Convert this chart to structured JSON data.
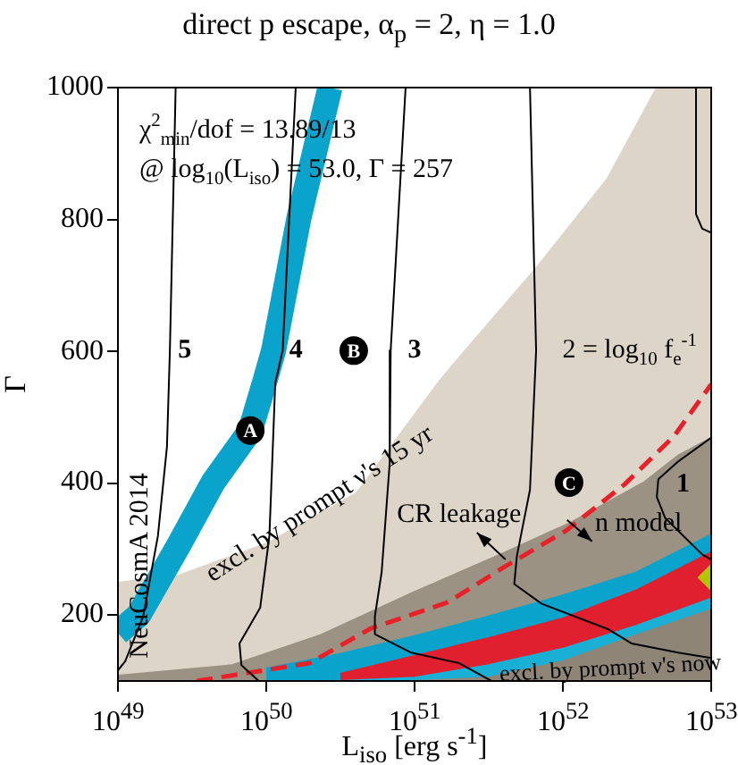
{
  "chart_data": {
    "type": "line",
    "title": "direct p escape, α$_{p}$ = 2, η = 1.0",
    "xlabel": "L$_{iso}$ [erg s$^{-1}$]",
    "ylabel": "Γ",
    "log": "x",
    "grid": false,
    "legend": false,
    "marker": "none",
    "xlim": [
      1e+49,
      1e+53
    ],
    "xticks": [
      {
        "value": 1e+49,
        "label": "10$^{49}$"
      },
      {
        "value": 1e+50,
        "label": "10$^{50}$"
      },
      {
        "value": 1e+51,
        "label": "10$^{51}$"
      },
      {
        "value": 1e+52,
        "label": "10$^{52}$"
      },
      {
        "value": 1e+53,
        "label": "10$^{53}$"
      }
    ],
    "ylim": [
      100,
      1000
    ],
    "yticks": [
      200,
      400,
      600,
      800,
      1000
    ],
    "series": [
      {
        "type": "area",
        "color": "#ddd5c8",
        "x": [
          1e+49,
          2.57e+49,
          1.02e+50,
          4.07e+50,
          1.45e+51,
          2.19e+51,
          6.6e+51,
          2e+52,
          4.3e+52,
          1e+53
        ],
        "values": [
          249,
          260,
          309,
          385,
          553,
          601,
          726,
          862,
          1000,
          1000
        ]
      },
      {
        "type": "area",
        "color": "#9b9283",
        "x": [
          1e+49,
          5.9e+49,
          2.34e+50,
          9.5e+50,
          3.8e+51,
          1.15e+52,
          3.5e+52,
          6e+52,
          1e+53
        ],
        "values": [
          108,
          124,
          170,
          233,
          292,
          341,
          401,
          442,
          469
        ]
      },
      {
        "type": "area",
        "color": "#0aa3cb",
        "x": [
          1e+50,
          3.16e+50,
          1e+51,
          3.16e+51,
          1e+52,
          3.16e+52,
          1e+53
        ],
        "values": [
          119,
          141,
          168,
          198,
          230,
          265,
          322
        ]
      },
      {
        "type": "area",
        "color": "#e0202f",
        "x": [
          3.16e+50,
          1e+51,
          3.16e+51,
          1e+52,
          3.16e+52,
          1e+53
        ],
        "values": [
          111,
          138,
          165,
          195,
          238,
          295
        ]
      },
      {
        "type": "area",
        "color": "#1ab0d6",
        "x": [
          3.16e+50,
          1e+51,
          3.16e+51,
          1e+52,
          3.16e+52,
          1e+53
        ],
        "values": [
          100,
          105,
          124,
          149,
          184,
          225
        ]
      },
      {
        "type": "area",
        "color": "#8e8577",
        "x": [
          1e+50,
          3.16e+50,
          1e+51,
          3.16e+51,
          1e+52,
          3.16e+52,
          1e+53
        ],
        "values": [
          100,
          100,
          100,
          105,
          130,
          170,
          208
        ]
      },
      {
        "color": "#0aa3cb",
        "x": [
          1e+49,
          1.38e+49,
          2.57e+49,
          4.37e+49,
          7.8e+49,
          9.8e+49,
          1.12e+50,
          1.66e+50,
          2.69e+50
        ],
        "values": [
          173,
          200,
          306,
          401,
          480,
          555,
          601,
          802,
          1000
        ]
      },
      {
        "color": "#e8202a",
        "line_style": "dashed",
        "x": [
          3.4e+49,
          1.95e+50,
          5e+50,
          1.66e+51,
          4.1e+51,
          1.05e+52,
          2.6e+52,
          5.6e+52,
          1e+53
        ],
        "values": [
          100,
          127,
          179,
          219,
          274,
          328,
          398,
          471,
          550
        ]
      },
      {
        "color": "#000000",
        "x": [
          2.45e+49,
          2.24e+49,
          2.14e+49,
          1.86e+49,
          1.48e+49,
          1.12e+49,
          1e+49
        ],
        "values": [
          1000,
          601,
          455,
          320,
          198,
          130,
          116
        ]
      },
      {
        "color": "#000000",
        "x": [
          1.58e+50,
          1.29e+50,
          1.15e+50,
          1.05e+50,
          9.1e+49,
          6.6e+49,
          6.8e+49,
          8.9e+49
        ],
        "values": [
          1000,
          601,
          552,
          320,
          211,
          157,
          124,
          100
        ]
      },
      {
        "color": "#000000",
        "x": [
          8.7e+50,
          6.9e+50,
          6.8e+50,
          6e+50,
          5.4e+50,
          5.4e+50,
          9.5e+50,
          2e+51,
          3.3e+51
        ],
        "values": [
          1000,
          601,
          431,
          265,
          198,
          171,
          143,
          127,
          100
        ]
      },
      {
        "color": "#000000",
        "x": [
          6e+51,
          6.6e+51,
          6e+51,
          4.9e+51,
          4.7e+51,
          7.2e+51,
          2e+52,
          2.9e+52,
          6e+52,
          1e+53
        ],
        "values": [
          1000,
          601,
          390,
          290,
          247,
          217,
          179,
          157,
          143,
          135
        ]
      },
      {
        "color": "#000000",
        "x": [
          7.9e+52,
          7.9e+52,
          8.7e+52,
          1e+53,
          null,
          1e+53,
          6e+52,
          4.4e+52,
          4.3e+52,
          4.9e+52,
          8.7e+52,
          1e+53
        ],
        "values": [
          1000,
          808,
          786,
          780,
          null,
          469,
          433,
          406,
          379,
          347,
          292,
          284
        ]
      },
      {
        "type": "scatter",
        "color": "#b5c400",
        "marker": "diamond",
        "x": [
          1e+53
        ],
        "values": [
          257
        ]
      }
    ],
    "annotations": [
      "χ$^{2}$$_{min}$/dof = 13.89/13",
      "@ log$_{10}$(L$_{iso}$) = 53.0, Γ = 257",
      "5",
      "4",
      {
        "text": "B",
        "x": 3.89e+50,
        "y": 601
      },
      "3",
      "2 = log$_{10}$ f$_{e}$$^{-1}$",
      {
        "text": "A",
        "x": 7.8e+49,
        "y": 480
      },
      {
        "text": "C",
        "x": 1.1e+52,
        "y": 401
      },
      "1",
      {
        "text": "excl. by prompt ν's 15 yr",
        "x": 2.3e+50,
        "y": 368
      },
      "CR leakage",
      "n model",
      "excl. by prompt ν's now",
      "NeuCosmA 2014"
    ]
  }
}
